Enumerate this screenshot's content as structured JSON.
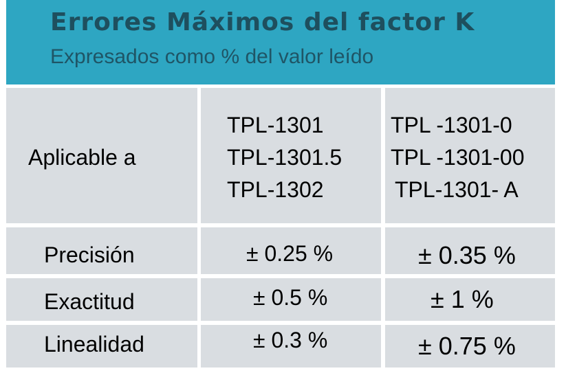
{
  "header": {
    "title": "Errores Máximos del factor K",
    "subtitle": "Expresados como % del valor leído"
  },
  "table": {
    "rows": [
      {
        "label": "Aplicable a",
        "col1": [
          "TPL-1301",
          "TPL-1301.5",
          "TPL-1302"
        ],
        "col2": [
          "TPL -1301-0",
          "TPL -1301-00",
          "TPL-1301- A"
        ]
      },
      {
        "label": "Precisión",
        "col1": "± 0.25 %",
        "col2": "± 0.35 %"
      },
      {
        "label": "Exactitud",
        "col1": "± 0.5 %",
        "col2": "± 1 %"
      },
      {
        "label": "Linealidad",
        "col1": "± 0.3 %",
        "col2": "± 0.75 %"
      }
    ]
  },
  "colors": {
    "header_bg": "#2ea6c2",
    "title_text": "#1e4f5e",
    "cell_bg": "#d9dde1"
  }
}
